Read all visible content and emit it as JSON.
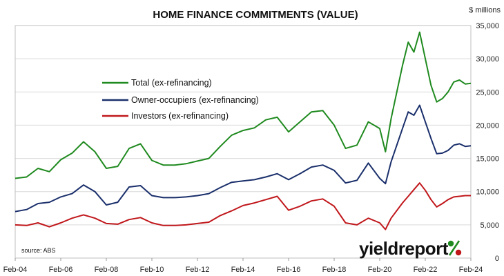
{
  "chart_data": {
    "type": "line",
    "title": "HOME FINANCE COMMITMENTS (VALUE)",
    "ylabel": "$ millions",
    "xlabel": "",
    "ylim": [
      0,
      35000
    ],
    "y_ticks": [
      "0",
      "5,000",
      "10,000",
      "15,000",
      "20,000",
      "25,000",
      "30,000",
      "35,000"
    ],
    "x_range": [
      "2004-02",
      "2024-02"
    ],
    "x_tick_labels": [
      "Feb-04",
      "Feb-06",
      "Feb-08",
      "Feb-10",
      "Feb-12",
      "Feb-14",
      "Feb-16",
      "Feb-18",
      "Feb-20",
      "Feb-22",
      "Feb-24"
    ],
    "grid": "horizontal",
    "legend_placement": "center-left",
    "source": "source: ABS",
    "logo": "yieldreport",
    "x": [
      "2004-02",
      "2004-08",
      "2005-02",
      "2005-08",
      "2006-02",
      "2006-08",
      "2007-02",
      "2007-08",
      "2008-02",
      "2008-08",
      "2009-02",
      "2009-08",
      "2010-02",
      "2010-08",
      "2011-02",
      "2011-08",
      "2012-02",
      "2012-08",
      "2013-02",
      "2013-08",
      "2014-02",
      "2014-08",
      "2015-02",
      "2015-08",
      "2016-02",
      "2016-08",
      "2017-02",
      "2017-08",
      "2018-02",
      "2018-08",
      "2019-02",
      "2019-08",
      "2020-02",
      "2020-05",
      "2020-08",
      "2021-02",
      "2021-05",
      "2021-08",
      "2021-11",
      "2022-02",
      "2022-05",
      "2022-08",
      "2022-11",
      "2023-02",
      "2023-05",
      "2023-08",
      "2023-11",
      "2024-02"
    ],
    "series": [
      {
        "name": "Total (ex-refinancing)",
        "color": "#1f8a1f",
        "values": [
          12000,
          12200,
          13500,
          13000,
          14800,
          15800,
          17500,
          16000,
          13500,
          13800,
          16500,
          17200,
          14700,
          14000,
          14000,
          14200,
          14600,
          15000,
          16800,
          18500,
          19200,
          19600,
          20800,
          21200,
          19000,
          20500,
          22000,
          22200,
          20000,
          16500,
          17000,
          20500,
          19500,
          16000,
          21000,
          29000,
          32500,
          31000,
          34000,
          30000,
          26000,
          23500,
          24000,
          25000,
          26500,
          26800,
          26200,
          26300
        ]
      },
      {
        "name": "Owner-occupiers (ex-refinancing)",
        "color": "#1a2f6b",
        "values": [
          7000,
          7300,
          8200,
          8400,
          9200,
          9700,
          11000,
          10000,
          8000,
          8400,
          10700,
          10900,
          9400,
          9100,
          9100,
          9200,
          9400,
          9700,
          10600,
          11400,
          11600,
          11800,
          12200,
          12700,
          11800,
          12700,
          13700,
          14000,
          13200,
          11300,
          11700,
          14300,
          12000,
          11200,
          14500,
          19500,
          22000,
          21500,
          23000,
          20500,
          18000,
          15700,
          15800,
          16200,
          17000,
          17200,
          16800,
          16900
        ]
      },
      {
        "name": "Investors (ex-refinancing)",
        "color": "#c0171b",
        "values": [
          5000,
          4900,
          5300,
          4700,
          5300,
          6000,
          6500,
          6000,
          5200,
          5100,
          5800,
          6100,
          5300,
          4900,
          4900,
          5000,
          5200,
          5400,
          6400,
          7100,
          7900,
          8300,
          8800,
          9300,
          7200,
          7800,
          8600,
          8900,
          7800,
          5300,
          5000,
          6000,
          5300,
          4300,
          6000,
          8300,
          9300,
          10300,
          11300,
          10200,
          8800,
          7700,
          8200,
          8800,
          9200,
          9300,
          9400,
          9400
        ]
      }
    ]
  }
}
